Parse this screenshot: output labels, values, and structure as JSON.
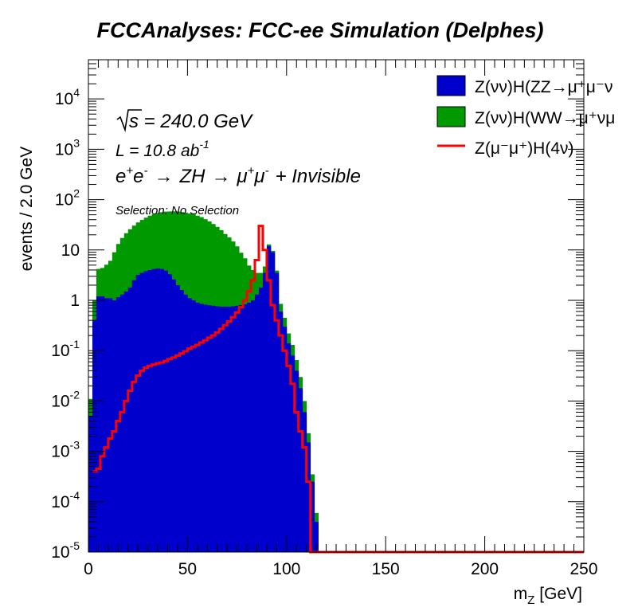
{
  "chart_data": {
    "type": "histogram",
    "title": "FCCAnalyses: FCC-ee Simulation (Delphes)",
    "xlabel_main": "m",
    "xlabel_sub": "Z",
    "xlabel_unit": " [GeV]",
    "ylabel": "events / 2.0 GeV",
    "xlim": [
      0,
      250
    ],
    "ylim": [
      1e-05,
      60000
    ],
    "yscale": "log",
    "bin_width": 2,
    "x_ticks": [
      "0",
      "50",
      "100",
      "150",
      "200",
      "250"
    ],
    "y_ticks": [
      {
        "base": "10",
        "exp": "-5",
        "value": 1e-05
      },
      {
        "base": "10",
        "exp": "-4",
        "value": 0.0001
      },
      {
        "base": "10",
        "exp": "-3",
        "value": 0.001
      },
      {
        "base": "10",
        "exp": "-2",
        "value": 0.01
      },
      {
        "base": "10",
        "exp": "-1",
        "value": 0.1
      },
      {
        "base": "1",
        "exp": "",
        "value": 1
      },
      {
        "base": "10",
        "exp": "",
        "value": 10
      },
      {
        "base": "10",
        "exp": "2",
        "value": 100
      },
      {
        "base": "10",
        "exp": "3",
        "value": 1000
      },
      {
        "base": "10",
        "exp": "4",
        "value": 10000
      }
    ],
    "annotations": {
      "sqrt_s_text": "s",
      "energy_text": " = 240.0 GeV",
      "lumi_prefix": "L = 10.8 ab",
      "lumi_exp": "-1",
      "process": {
        "e1": "e",
        "e1_sup": "+",
        "e2": "e",
        "e2_sup": "-",
        "arrow1": "→",
        "zh": "ZH",
        "arrow2": "→",
        "mu1": "μ",
        "mu1_sup": "+",
        "mu2": "μ",
        "mu2_sup": "-",
        "rest": "+ Invisible"
      },
      "selection": "Selection: No Selection"
    },
    "stack_series": [
      {
        "name": "Z(νν̄)H(ZZ→μ⁺μ⁻νν̄)",
        "legend_text": "Z(νν)H(ZZ→μ⁺μ⁻ν",
        "color": "#0000cc",
        "x_start": 0,
        "values": [
          0.005,
          0.4,
          1.2,
          1.2,
          1.1,
          1.1,
          1.0,
          1.15,
          1.3,
          1.5,
          1.8,
          2.5,
          3.2,
          3.5,
          3.8,
          4.0,
          4.2,
          4.3,
          4.2,
          3.9,
          3.3,
          2.6,
          2.0,
          1.6,
          1.3,
          1.1,
          1.0,
          0.9,
          0.85,
          0.82,
          0.8,
          0.78,
          0.76,
          0.75,
          0.75,
          0.75,
          0.76,
          0.78,
          0.8,
          0.83,
          0.9,
          1.0,
          1.3,
          1.8,
          3.5,
          12,
          9,
          3.5,
          0.6,
          0.3,
          0.14,
          0.08,
          0.04,
          0.018,
          0.006,
          0.0015,
          0.00025,
          4e-05
        ]
      },
      {
        "name": "Z(νν̄)H(WW→μ⁺νμ⁻ν̄)",
        "legend_text": "Z(νν)H(WW→μ⁺νμ",
        "color": "#009900",
        "x_start": 0,
        "values": [
          0.006,
          0.6,
          3,
          3.2,
          4,
          5,
          8,
          12,
          16,
          20,
          24,
          28,
          32,
          36,
          40,
          44,
          47,
          50,
          52,
          54,
          55,
          56,
          56,
          55,
          54,
          52,
          50,
          47,
          44,
          40,
          36,
          32,
          28,
          24,
          20,
          17,
          14,
          11,
          8,
          6,
          4,
          3,
          2.2,
          1.7,
          1.2,
          0.9,
          0.6,
          0.4,
          0.25,
          0.15,
          0.08,
          0.05,
          0.025,
          0.012,
          0.004,
          0.0008,
          0.0001,
          2e-05
        ]
      }
    ],
    "line_series": {
      "name": "Z(μ⁻μ⁺)H(4ν)",
      "legend_text": "Z(μ⁻μ⁺)H(4ν)",
      "color": "#ff0000",
      "x_start": 2,
      "values": [
        0.0004,
        0.00045,
        0.0008,
        0.0012,
        0.0018,
        0.0025,
        0.004,
        0.006,
        0.01,
        0.016,
        0.024,
        0.032,
        0.04,
        0.046,
        0.05,
        0.053,
        0.056,
        0.058,
        0.062,
        0.068,
        0.073,
        0.08,
        0.088,
        0.097,
        0.11,
        0.12,
        0.13,
        0.145,
        0.16,
        0.18,
        0.2,
        0.23,
        0.27,
        0.32,
        0.38,
        0.46,
        0.57,
        0.73,
        1.0,
        1.5,
        2.5,
        6.3,
        30,
        10,
        2.5,
        0.8,
        0.4,
        0.2,
        0.1,
        0.05,
        0.022,
        0.006,
        0.0025,
        0.0012,
        0.00025
      ]
    }
  }
}
